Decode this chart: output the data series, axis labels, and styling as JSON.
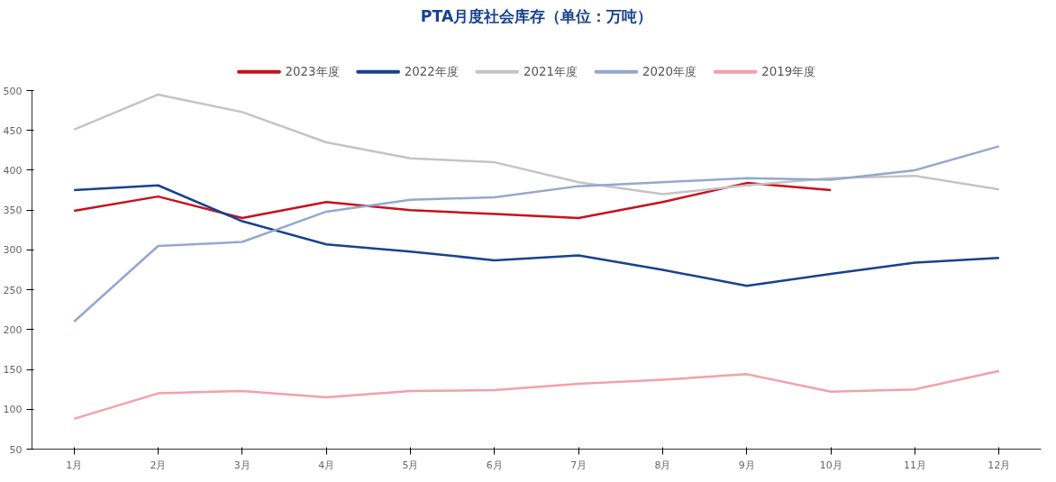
{
  "chart_data": {
    "type": "line",
    "title": "PTA月度社会库存（单位：万吨）",
    "categories": [
      "1月",
      "2月",
      "3月",
      "4月",
      "5月",
      "6月",
      "7月",
      "8月",
      "9月",
      "10月",
      "11月",
      "12月"
    ],
    "ylim": [
      50,
      500
    ],
    "yticks": [
      50,
      100,
      150,
      200,
      250,
      300,
      350,
      400,
      450,
      500
    ],
    "grid": false,
    "legend": "top",
    "marker": "none",
    "line_style": "solid",
    "series": [
      {
        "name": "2023年度",
        "color": "#c8101e",
        "values": [
          349,
          367,
          340,
          360,
          350,
          345,
          340,
          360,
          384,
          375,
          null,
          null
        ]
      },
      {
        "name": "2022年度",
        "color": "#17428f",
        "values": [
          375,
          381,
          336,
          307,
          298,
          287,
          293,
          275,
          255,
          270,
          284,
          290
        ]
      },
      {
        "name": "2021年度",
        "color": "#c4c4c4",
        "values": [
          451,
          495,
          473,
          435,
          415,
          410,
          385,
          370,
          381,
          390,
          393,
          376
        ]
      },
      {
        "name": "2020年度",
        "color": "#94a8cf",
        "values": [
          210,
          305,
          310,
          348,
          363,
          366,
          380,
          385,
          390,
          388,
          400,
          430
        ]
      },
      {
        "name": "2019年度",
        "color": "#f4a0a8",
        "values": [
          88,
          120,
          123,
          115,
          123,
          124,
          132,
          137,
          144,
          122,
          125,
          148
        ]
      }
    ]
  }
}
